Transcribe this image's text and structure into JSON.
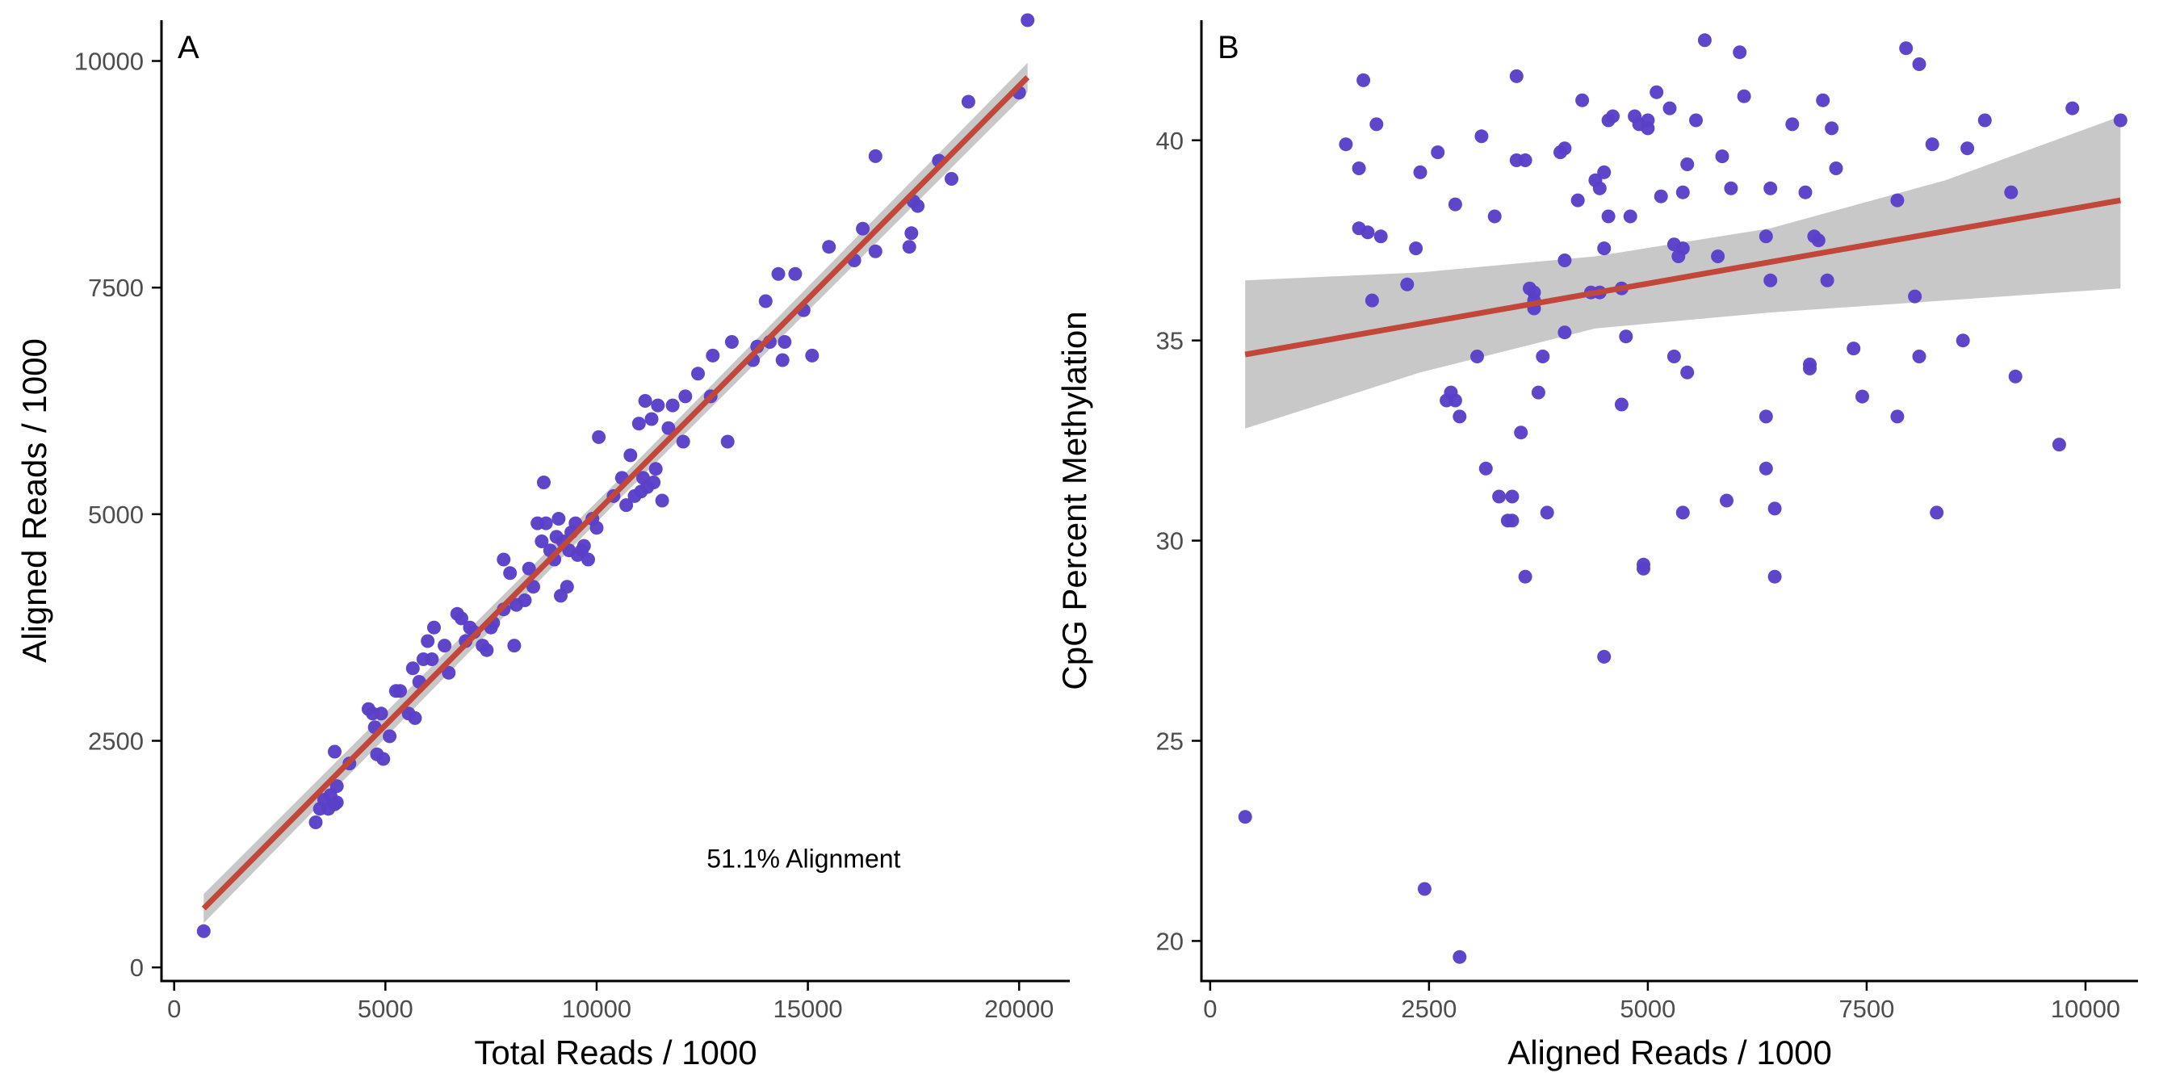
{
  "colors": {
    "points": "#5a3fc8",
    "fit_line": "#c0473a",
    "ci_band": "#c8c8c8",
    "axis": "#000000"
  },
  "chart_data": [
    {
      "type": "scatter",
      "panel_label": "A",
      "xlabel": "Total Reads / 1000",
      "ylabel": "Aligned Reads / 1000",
      "xlim": [
        -300,
        21200
      ],
      "ylim": [
        -150,
        10450
      ],
      "xticks": [
        0,
        5000,
        10000,
        15000,
        20000
      ],
      "yticks": [
        0,
        2500,
        5000,
        7500,
        10000
      ],
      "grid": false,
      "annotation": {
        "text": "51.1% Alignment",
        "x": 14900,
        "y": 1200
      },
      "fit": {
        "method": "lm",
        "x": [
          700,
          20200
        ],
        "y": [
          650,
          9820
        ],
        "ci_halfwidth": [
          160,
          110,
          160
        ]
      },
      "points": [
        [
          700,
          400
        ],
        [
          3350,
          1600
        ],
        [
          3450,
          1750
        ],
        [
          3550,
          1850
        ],
        [
          3650,
          1750
        ],
        [
          3700,
          1900
        ],
        [
          3800,
          1800
        ],
        [
          3850,
          2000
        ],
        [
          3800,
          2380
        ],
        [
          3850,
          1820
        ],
        [
          4150,
          2250
        ],
        [
          4600,
          2850
        ],
        [
          4700,
          2800
        ],
        [
          4750,
          2650
        ],
        [
          4800,
          2350
        ],
        [
          4900,
          2800
        ],
        [
          4950,
          2300
        ],
        [
          5100,
          2550
        ],
        [
          5250,
          3050
        ],
        [
          5350,
          3050
        ],
        [
          5550,
          2800
        ],
        [
          5650,
          3300
        ],
        [
          5700,
          2750
        ],
        [
          5800,
          3150
        ],
        [
          5900,
          3400
        ],
        [
          6000,
          3600
        ],
        [
          6100,
          3400
        ],
        [
          6150,
          3750
        ],
        [
          6400,
          3550
        ],
        [
          6500,
          3250
        ],
        [
          6700,
          3900
        ],
        [
          6800,
          3850
        ],
        [
          6900,
          3600
        ],
        [
          7000,
          3750
        ],
        [
          7100,
          3700
        ],
        [
          7300,
          3550
        ],
        [
          7400,
          3500
        ],
        [
          7500,
          3750
        ],
        [
          7550,
          3800
        ],
        [
          7800,
          4500
        ],
        [
          7800,
          3950
        ],
        [
          7950,
          4350
        ],
        [
          8050,
          3550
        ],
        [
          8100,
          4000
        ],
        [
          8300,
          4050
        ],
        [
          8400,
          4400
        ],
        [
          8500,
          4200
        ],
        [
          8600,
          4900
        ],
        [
          8700,
          4700
        ],
        [
          8750,
          5350
        ],
        [
          8800,
          4900
        ],
        [
          8900,
          4600
        ],
        [
          9000,
          4500
        ],
        [
          9050,
          4750
        ],
        [
          9100,
          4950
        ],
        [
          9150,
          4100
        ],
        [
          9200,
          4700
        ],
        [
          9300,
          4200
        ],
        [
          9350,
          4600
        ],
        [
          9400,
          4800
        ],
        [
          9500,
          4900
        ],
        [
          9550,
          4550
        ],
        [
          9650,
          4600
        ],
        [
          9700,
          4650
        ],
        [
          9800,
          4500
        ],
        [
          9900,
          4950
        ],
        [
          10000,
          4850
        ],
        [
          10050,
          5850
        ],
        [
          10400,
          5200
        ],
        [
          10600,
          5400
        ],
        [
          10700,
          5100
        ],
        [
          10800,
          5650
        ],
        [
          10900,
          5200
        ],
        [
          11000,
          6000
        ],
        [
          11050,
          5250
        ],
        [
          11100,
          5400
        ],
        [
          11150,
          6250
        ],
        [
          11200,
          5300
        ],
        [
          11300,
          6050
        ],
        [
          11350,
          5350
        ],
        [
          11400,
          5500
        ],
        [
          11450,
          6200
        ],
        [
          11550,
          5150
        ],
        [
          11700,
          5950
        ],
        [
          11800,
          6200
        ],
        [
          12050,
          5800
        ],
        [
          12100,
          6300
        ],
        [
          12400,
          6550
        ],
        [
          12700,
          6300
        ],
        [
          12750,
          6750
        ],
        [
          13100,
          5800
        ],
        [
          13200,
          6900
        ],
        [
          13700,
          6700
        ],
        [
          13800,
          6850
        ],
        [
          14000,
          7350
        ],
        [
          14100,
          6900
        ],
        [
          14300,
          7650
        ],
        [
          14400,
          6700
        ],
        [
          14450,
          6900
        ],
        [
          14700,
          7650
        ],
        [
          14900,
          7250
        ],
        [
          15100,
          6750
        ],
        [
          15500,
          7950
        ],
        [
          16100,
          7800
        ],
        [
          16300,
          8150
        ],
        [
          16600,
          7900
        ],
        [
          16600,
          8950
        ],
        [
          17400,
          7950
        ],
        [
          17450,
          8100
        ],
        [
          17500,
          8450
        ],
        [
          17600,
          8400
        ],
        [
          18100,
          8900
        ],
        [
          18400,
          8700
        ],
        [
          18800,
          9550
        ],
        [
          20000,
          9650
        ],
        [
          20200,
          10450
        ]
      ]
    },
    {
      "type": "scatter",
      "panel_label": "B",
      "xlabel": "Aligned Reads / 1000",
      "ylabel": "CpG Percent Methylation",
      "xlim": [
        -100,
        10600
      ],
      "ylim": [
        19.0,
        43.0
      ],
      "xticks": [
        0,
        2500,
        5000,
        7500,
        10000
      ],
      "yticks": [
        20,
        25,
        30,
        35,
        40
      ],
      "grid": false,
      "fit": {
        "method": "lm",
        "x": [
          400,
          10400
        ],
        "y": [
          34.65,
          38.5
        ],
        "ci_upper": [
          36.5,
          36.7,
          37.1,
          37.8,
          39.0,
          40.6
        ],
        "ci_lower": [
          32.8,
          34.2,
          35.3,
          35.7,
          36.0,
          36.3
        ]
      },
      "points": [
        [
          400,
          23.1
        ],
        [
          1550,
          39.9
        ],
        [
          1700,
          39.3
        ],
        [
          1750,
          41.5
        ],
        [
          1700,
          37.8
        ],
        [
          1800,
          37.7
        ],
        [
          1850,
          36.0
        ],
        [
          1900,
          40.4
        ],
        [
          1950,
          37.6
        ],
        [
          2250,
          36.4
        ],
        [
          2350,
          37.3
        ],
        [
          2400,
          39.2
        ],
        [
          2450,
          21.3
        ],
        [
          2600,
          39.7
        ],
        [
          2700,
          33.5
        ],
        [
          2750,
          33.7
        ],
        [
          2800,
          38.4
        ],
        [
          2800,
          33.5
        ],
        [
          2850,
          33.1
        ],
        [
          2850,
          19.6
        ],
        [
          3050,
          34.6
        ],
        [
          3100,
          40.1
        ],
        [
          3150,
          31.8
        ],
        [
          3250,
          38.1
        ],
        [
          3300,
          31.1
        ],
        [
          3400,
          30.5
        ],
        [
          3450,
          31.1
        ],
        [
          3450,
          30.5
        ],
        [
          3500,
          39.5
        ],
        [
          3500,
          41.6
        ],
        [
          3550,
          32.7
        ],
        [
          3600,
          39.5
        ],
        [
          3600,
          29.1
        ],
        [
          3650,
          36.3
        ],
        [
          3700,
          36.2
        ],
        [
          3700,
          36.0
        ],
        [
          3700,
          35.8
        ],
        [
          3750,
          33.7
        ],
        [
          3800,
          34.6
        ],
        [
          3850,
          30.7
        ],
        [
          4000,
          39.7
        ],
        [
          4050,
          39.8
        ],
        [
          4050,
          35.2
        ],
        [
          4050,
          37.0
        ],
        [
          4200,
          38.5
        ],
        [
          4250,
          41.0
        ],
        [
          4350,
          36.2
        ],
        [
          4400,
          39.0
        ],
        [
          4450,
          36.2
        ],
        [
          4450,
          38.8
        ],
        [
          4500,
          37.3
        ],
        [
          4500,
          39.2
        ],
        [
          4500,
          27.1
        ],
        [
          4550,
          40.5
        ],
        [
          4550,
          38.1
        ],
        [
          4600,
          40.6
        ],
        [
          4700,
          36.3
        ],
        [
          4700,
          33.4
        ],
        [
          4750,
          35.1
        ],
        [
          4800,
          38.1
        ],
        [
          4850,
          40.6
        ],
        [
          4900,
          40.4
        ],
        [
          4950,
          29.3
        ],
        [
          4950,
          29.4
        ],
        [
          5000,
          40.5
        ],
        [
          5000,
          40.3
        ],
        [
          5100,
          41.2
        ],
        [
          5150,
          38.6
        ],
        [
          5250,
          40.8
        ],
        [
          5300,
          34.6
        ],
        [
          5300,
          37.4
        ],
        [
          5350,
          37.1
        ],
        [
          5400,
          38.7
        ],
        [
          5400,
          37.3
        ],
        [
          5400,
          30.7
        ],
        [
          5450,
          34.2
        ],
        [
          5450,
          39.4
        ],
        [
          5550,
          40.5
        ],
        [
          5650,
          42.5
        ],
        [
          5800,
          37.1
        ],
        [
          5850,
          39.6
        ],
        [
          5900,
          31.0
        ],
        [
          5950,
          38.8
        ],
        [
          6050,
          42.2
        ],
        [
          6100,
          41.1
        ],
        [
          6350,
          37.6
        ],
        [
          6350,
          33.1
        ],
        [
          6350,
          31.8
        ],
        [
          6400,
          38.8
        ],
        [
          6400,
          36.5
        ],
        [
          6450,
          30.8
        ],
        [
          6450,
          29.1
        ],
        [
          6650,
          40.4
        ],
        [
          6800,
          38.7
        ],
        [
          6850,
          34.4
        ],
        [
          6850,
          34.3
        ],
        [
          6900,
          37.6
        ],
        [
          6950,
          37.5
        ],
        [
          7000,
          41.0
        ],
        [
          7050,
          36.5
        ],
        [
          7100,
          40.3
        ],
        [
          7150,
          39.3
        ],
        [
          7350,
          34.8
        ],
        [
          7450,
          33.6
        ],
        [
          7850,
          33.1
        ],
        [
          7850,
          38.5
        ],
        [
          7950,
          42.3
        ],
        [
          8050,
          36.1
        ],
        [
          8100,
          34.6
        ],
        [
          8100,
          41.9
        ],
        [
          8250,
          39.9
        ],
        [
          8300,
          30.7
        ],
        [
          8600,
          35.0
        ],
        [
          8650,
          39.8
        ],
        [
          8850,
          40.5
        ],
        [
          9150,
          38.7
        ],
        [
          9200,
          34.1
        ],
        [
          9700,
          32.4
        ],
        [
          9850,
          40.8
        ],
        [
          10400,
          40.5
        ]
      ]
    }
  ]
}
